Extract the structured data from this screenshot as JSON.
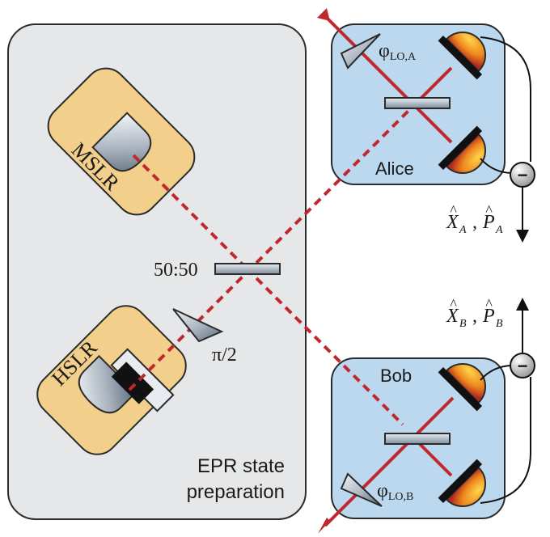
{
  "panels": {
    "epr": {
      "title_line1": "EPR state",
      "title_line2": "preparation"
    },
    "alice": {
      "name": "Alice",
      "phase_symbol": "φ",
      "phase_sub": "LO,A"
    },
    "bob": {
      "name": "Bob",
      "phase_symbol": "φ",
      "phase_sub": "LO,B"
    }
  },
  "lasers": {
    "mslr": "MSLR",
    "hslr": "HSLR"
  },
  "optics": {
    "beamsplitter": "50:50",
    "phase_plate": "π/2"
  },
  "outputs": {
    "alice_x": "X",
    "alice_x_sub": "A",
    "alice_p": "P",
    "alice_p_sub": "A",
    "bob_x": "X",
    "bob_x_sub": "B",
    "bob_p": "P",
    "bob_p_sub": "B",
    "comma": ",",
    "hat": "^",
    "minus": "−"
  },
  "colors": {
    "epr_panel": "#e6e7e9",
    "detector_panel": "#bcd8ee",
    "laser_box": "#f2cf8a",
    "beam": "#c0282f"
  }
}
